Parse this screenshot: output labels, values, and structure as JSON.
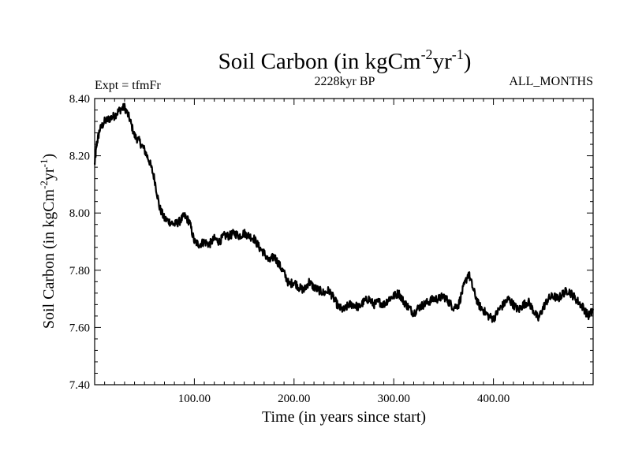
{
  "chart_data": {
    "type": "line",
    "title": "Soil Carbon (in kgCm",
    "title_sup1": "-2",
    "title_mid": "yr",
    "title_sup2": "-1",
    "title_end": ")",
    "subtitle_left": "Expt = tfmFr",
    "subtitle_center": "2228kyr BP",
    "subtitle_right": "ALL_MONTHS",
    "xlabel": "Time (in years since start)",
    "ylabel": "Soil Carbon (in kgCm",
    "ylabel_sup1": "-2",
    "ylabel_mid": "yr",
    "ylabel_sup2": "-1",
    "ylabel_end": ")",
    "xlim": [
      0,
      500
    ],
    "ylim": [
      7.4,
      8.4
    ],
    "xticks": [
      100,
      200,
      300,
      400
    ],
    "xtick_labels": [
      "100.00",
      "200.00",
      "300.00",
      "400.00"
    ],
    "yticks": [
      7.4,
      7.6,
      7.8,
      8.0,
      8.2,
      8.4
    ],
    "ytick_labels": [
      "7.40",
      "7.60",
      "7.80",
      "8.00",
      "8.20",
      "8.40"
    ],
    "series": [
      {
        "name": "Soil Carbon",
        "color": "#000000",
        "x": [
          0,
          2,
          5,
          10,
          15,
          20,
          25,
          30,
          35,
          40,
          45,
          50,
          55,
          60,
          65,
          70,
          75,
          80,
          85,
          90,
          95,
          100,
          105,
          110,
          115,
          120,
          125,
          130,
          135,
          140,
          145,
          150,
          155,
          160,
          165,
          170,
          175,
          180,
          185,
          190,
          195,
          200,
          205,
          210,
          215,
          220,
          225,
          230,
          235,
          240,
          245,
          250,
          255,
          260,
          265,
          270,
          275,
          280,
          285,
          290,
          295,
          300,
          305,
          310,
          315,
          320,
          325,
          330,
          335,
          340,
          345,
          350,
          355,
          360,
          365,
          370,
          375,
          380,
          385,
          390,
          395,
          400,
          405,
          410,
          415,
          420,
          425,
          430,
          435,
          440,
          445,
          450,
          455,
          460,
          465,
          470,
          475,
          480,
          485,
          490,
          495,
          500
        ],
        "values": [
          8.17,
          8.24,
          8.29,
          8.32,
          8.33,
          8.34,
          8.36,
          8.37,
          8.33,
          8.27,
          8.25,
          8.22,
          8.18,
          8.12,
          8.02,
          7.98,
          7.97,
          7.96,
          7.97,
          7.99,
          7.97,
          7.9,
          7.89,
          7.9,
          7.89,
          7.91,
          7.9,
          7.92,
          7.92,
          7.93,
          7.92,
          7.93,
          7.92,
          7.91,
          7.88,
          7.86,
          7.83,
          7.85,
          7.82,
          7.79,
          7.75,
          7.76,
          7.74,
          7.73,
          7.76,
          7.74,
          7.73,
          7.72,
          7.73,
          7.7,
          7.67,
          7.66,
          7.68,
          7.68,
          7.67,
          7.69,
          7.7,
          7.68,
          7.69,
          7.68,
          7.7,
          7.71,
          7.72,
          7.69,
          7.67,
          7.65,
          7.67,
          7.68,
          7.69,
          7.7,
          7.7,
          7.71,
          7.69,
          7.67,
          7.68,
          7.74,
          7.79,
          7.73,
          7.68,
          7.66,
          7.64,
          7.63,
          7.66,
          7.68,
          7.7,
          7.68,
          7.66,
          7.68,
          7.69,
          7.66,
          7.63,
          7.67,
          7.7,
          7.71,
          7.7,
          7.72,
          7.73,
          7.71,
          7.69,
          7.67,
          7.64,
          7.66
        ]
      }
    ]
  }
}
